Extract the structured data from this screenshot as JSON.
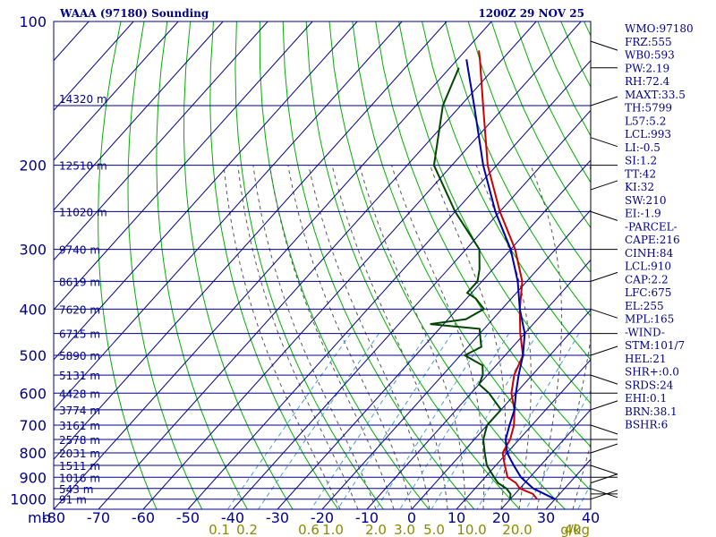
{
  "chart_data": {
    "type": "line",
    "title": "WAAA (97180) Sounding",
    "valid_time": "1200Z 29 NOV 25",
    "pressure_axis": {
      "label": "mb",
      "ticks": [
        100,
        200,
        300,
        400,
        500,
        600,
        700,
        800,
        900,
        1000
      ],
      "range": [
        100,
        1050
      ]
    },
    "temperature_axis": {
      "ticks": [
        -80,
        -70,
        -60,
        -50,
        -40,
        -30,
        -20,
        -10,
        0,
        10,
        20,
        30,
        40
      ],
      "range": [
        -80,
        40
      ]
    },
    "height_labels": [
      {
        "p": 145,
        "label": "14320 m"
      },
      {
        "p": 200,
        "label": "12510 m"
      },
      {
        "p": 250,
        "label": "11020 m"
      },
      {
        "p": 300,
        "label": "9740 m"
      },
      {
        "p": 350,
        "label": "8619 m"
      },
      {
        "p": 400,
        "label": "7620 m"
      },
      {
        "p": 450,
        "label": "6715 m"
      },
      {
        "p": 500,
        "label": "5890 m"
      },
      {
        "p": 550,
        "label": "5131 m"
      },
      {
        "p": 600,
        "label": "4428 m"
      },
      {
        "p": 650,
        "label": "3774 m"
      },
      {
        "p": 700,
        "label": "3161 m"
      },
      {
        "p": 750,
        "label": "2578 m"
      },
      {
        "p": 800,
        "label": "2031 m"
      },
      {
        "p": 850,
        "label": "1511 m"
      },
      {
        "p": 900,
        "label": "1016 m"
      },
      {
        "p": 950,
        "label": "543 m"
      },
      {
        "p": 1000,
        "label": "91 m"
      }
    ],
    "mixing_ratio_axis": {
      "unit": "g/kg",
      "labels": [
        "0.1",
        "0.2",
        "0.6",
        "1.0",
        "2.0",
        "3.0",
        "5.0",
        "10.0",
        "20.0",
        "40"
      ]
    },
    "series": [
      {
        "name": "Temperature",
        "color": "#cc0000",
        "points": [
          [
            1000,
            26
          ],
          [
            975,
            24
          ],
          [
            950,
            20
          ],
          [
            925,
            18
          ],
          [
            900,
            15
          ],
          [
            850,
            12
          ],
          [
            800,
            9
          ],
          [
            750,
            8
          ],
          [
            700,
            6
          ],
          [
            650,
            3
          ],
          [
            600,
            -1
          ],
          [
            550,
            -4
          ],
          [
            500,
            -6
          ],
          [
            450,
            -11
          ],
          [
            400,
            -16
          ],
          [
            350,
            -21
          ],
          [
            300,
            -29
          ],
          [
            250,
            -40
          ],
          [
            200,
            -52
          ],
          [
            150,
            -65
          ],
          [
            120,
            -75
          ],
          [
            115,
            -77
          ]
        ]
      },
      {
        "name": "Dewpoint",
        "color": "#004400",
        "points": [
          [
            1000,
            20
          ],
          [
            975,
            19
          ],
          [
            950,
            17
          ],
          [
            925,
            14
          ],
          [
            900,
            12
          ],
          [
            850,
            8
          ],
          [
            800,
            5
          ],
          [
            750,
            2
          ],
          [
            700,
            0
          ],
          [
            650,
            0
          ],
          [
            600,
            -6
          ],
          [
            575,
            -10
          ],
          [
            550,
            -11
          ],
          [
            525,
            -13
          ],
          [
            500,
            -19
          ],
          [
            480,
            -17
          ],
          [
            460,
            -19
          ],
          [
            440,
            -21
          ],
          [
            430,
            -33
          ],
          [
            420,
            -26
          ],
          [
            400,
            -24
          ],
          [
            380,
            -28
          ],
          [
            370,
            -31
          ],
          [
            350,
            -31
          ],
          [
            330,
            -33
          ],
          [
            300,
            -37
          ],
          [
            250,
            -50
          ],
          [
            200,
            -64
          ],
          [
            150,
            -74
          ],
          [
            125,
            -78
          ]
        ]
      },
      {
        "name": "Parcel",
        "color": "#0000aa",
        "points": [
          [
            1000,
            30
          ],
          [
            950,
            23
          ],
          [
            900,
            18
          ],
          [
            850,
            14
          ],
          [
            800,
            10
          ],
          [
            750,
            7
          ],
          [
            700,
            5
          ],
          [
            650,
            3
          ],
          [
            600,
            0
          ],
          [
            550,
            -3
          ],
          [
            500,
            -6
          ],
          [
            450,
            -10
          ],
          [
            400,
            -16
          ],
          [
            350,
            -22
          ],
          [
            300,
            -30
          ],
          [
            250,
            -41
          ],
          [
            200,
            -53
          ],
          [
            150,
            -67
          ],
          [
            125,
            -76
          ],
          [
            120,
            -78
          ]
        ]
      }
    ]
  },
  "indices": [
    "WMO:97180",
    "FRZ:555",
    "WB0:593",
    "PW:2.19",
    "RH:72.4",
    "MAXT:33.5",
    "TH:5799",
    "L57:5.2",
    "LCL:993",
    "LI:-0.5",
    "SI:1.2",
    "TT:42",
    "KI:32",
    "SW:210",
    "EI:-1.9",
    "-PARCEL-",
    "CAPE:216",
    "CINH:84",
    "LCL:910",
    "CAP:2.2",
    "LFC:675",
    "EL:255",
    "MPL:165",
    "-WIND-",
    "STM:101/7",
    "HEL:21",
    "SHR+:0.0",
    "SRDS:24",
    "EHI:0.1",
    "BRN:38.1",
    "BSHR:6"
  ],
  "colors": {
    "frame": "#00008b",
    "isotherm": "#00008b",
    "dry_adiabat": "#00b000",
    "moist_adiabat": "#555555",
    "mixing_ratio": "#4aa0d8"
  }
}
